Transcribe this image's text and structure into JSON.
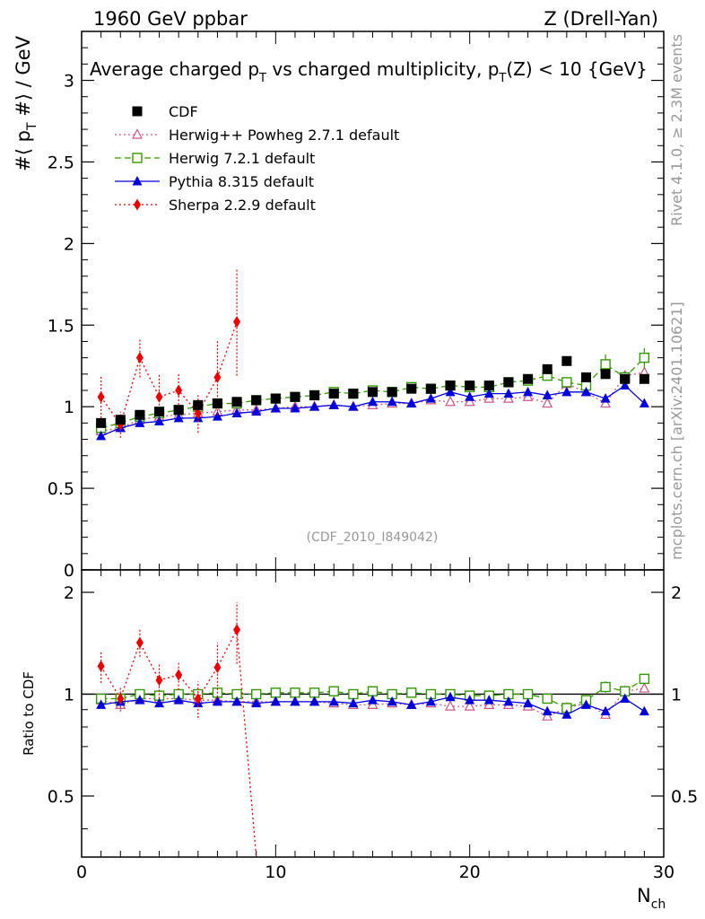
{
  "header": {
    "left_label": "1960 GeV ppbar",
    "right_label": "Z (Drell-Yan)"
  },
  "side_labels": {
    "rivet": "Rivet 4.1.0, ≥ 2.3M events",
    "mcplots": "mcplots.cern.ch [arXiv:2401.10621]"
  },
  "colors": {
    "data": "#000000",
    "herwigpp": "#cc5588",
    "herwig7": "#339900",
    "pythia": "#0000dd",
    "sherpa": "#ee0000",
    "axis": "#000000",
    "watermark": "#999999"
  },
  "chart_data": [
    {
      "type": "scatter",
      "panel": "main",
      "title_parts": {
        "t1": "Average charged p",
        "t1_sub": "T",
        "t2": " vs charged multiplicity, p",
        "t2_sub": "T",
        "t3": "(Z) < 10 {GeV}"
      },
      "ylabel_parts": {
        "a": "#⟨ p",
        "sub": "T",
        "b": " #⟩ / GeV"
      },
      "xlabel_parts": {
        "main": "N",
        "sub": "ch"
      },
      "watermark": "(CDF_2010_I849042)",
      "xlim": [
        0,
        30
      ],
      "ylim": [
        0,
        3.3
      ],
      "yticks": [
        0,
        0.5,
        1,
        1.5,
        2,
        2.5,
        3
      ],
      "ytick_labels": [
        "0",
        "0.5",
        "1",
        "1.5",
        "2",
        "2.5",
        "3"
      ],
      "x": [
        1,
        2,
        3,
        4,
        5,
        6,
        7,
        8,
        9,
        10,
        11,
        12,
        13,
        14,
        15,
        16,
        17,
        18,
        19,
        20,
        21,
        22,
        23,
        24,
        25,
        26,
        27,
        28,
        29
      ],
      "series": [
        {
          "name": "CDF",
          "style": "data",
          "values": [
            0.9,
            0.92,
            0.95,
            0.97,
            0.98,
            1.01,
            1.02,
            1.03,
            1.04,
            1.05,
            1.06,
            1.07,
            1.08,
            1.08,
            1.09,
            1.09,
            1.11,
            1.11,
            1.13,
            1.13,
            1.13,
            1.15,
            1.17,
            1.23,
            1.28,
            1.18,
            1.2,
            1.17,
            1.17
          ]
        },
        {
          "name": "Herwig++ Powheg 2.7.1 default",
          "style": "herwigpp",
          "values": [
            0.85,
            0.87,
            0.92,
            0.94,
            0.95,
            0.96,
            0.97,
            0.98,
            0.98,
            0.99,
            1.0,
            1.0,
            1.01,
            1.0,
            1.01,
            1.02,
            1.02,
            1.04,
            1.03,
            1.03,
            1.05,
            1.05,
            1.06,
            1.02,
            1.14,
            1.09,
            1.02,
            1.19,
            1.21
          ]
        },
        {
          "name": "Herwig 7.2.1 default",
          "style": "herwig7",
          "values": [
            0.87,
            0.9,
            0.94,
            0.96,
            0.98,
            1.0,
            1.02,
            1.02,
            1.04,
            1.05,
            1.06,
            1.07,
            1.09,
            1.08,
            1.1,
            1.09,
            1.12,
            1.11,
            1.13,
            1.12,
            1.12,
            1.15,
            1.16,
            1.19,
            1.15,
            1.13,
            1.26,
            1.18,
            1.3
          ],
          "err_idx": [
            26,
            28
          ],
          "err_val": [
            0.06,
            0.06
          ]
        },
        {
          "name": "Pythia 8.315 default",
          "style": "pythia",
          "values": [
            0.82,
            0.87,
            0.9,
            0.91,
            0.93,
            0.93,
            0.94,
            0.96,
            0.97,
            0.99,
            0.99,
            1.0,
            1.01,
            1.0,
            1.03,
            1.03,
            1.02,
            1.05,
            1.09,
            1.06,
            1.08,
            1.08,
            1.09,
            1.07,
            1.09,
            1.09,
            1.05,
            1.13,
            1.02
          ]
        },
        {
          "name": "Sherpa 2.2.9 default",
          "style": "sherpa",
          "x": [
            1,
            2,
            3,
            4,
            5,
            6,
            7,
            8
          ],
          "values": [
            1.06,
            0.89,
            1.3,
            1.06,
            1.1,
            0.96,
            1.18,
            1.52
          ],
          "errors": [
            0.13,
            0.08,
            0.12,
            0.14,
            0.11,
            0.12,
            0.23,
            0.33
          ]
        }
      ]
    },
    {
      "type": "line",
      "panel": "ratio",
      "ylabel": "Ratio to CDF",
      "xlim": [
        0,
        30
      ],
      "ylim": [
        0.33,
        2.33
      ],
      "xticks": [
        0,
        10,
        20,
        30
      ],
      "xtick_labels": [
        "0",
        "10",
        "20",
        "30"
      ],
      "yticks": [
        0.5,
        1,
        2
      ],
      "ytick_labels": [
        "0.5",
        "1",
        "2"
      ],
      "x": [
        1,
        2,
        3,
        4,
        5,
        6,
        7,
        8,
        9,
        10,
        11,
        12,
        13,
        14,
        15,
        16,
        17,
        18,
        19,
        20,
        21,
        22,
        23,
        24,
        25,
        26,
        27,
        28,
        29
      ],
      "series": [
        {
          "name": "Herwig++ Powheg 2.7.1 default",
          "style": "herwigpp",
          "values": [
            0.96,
            0.93,
            0.97,
            0.97,
            0.97,
            0.96,
            0.96,
            0.95,
            0.95,
            0.95,
            0.95,
            0.95,
            0.94,
            0.93,
            0.93,
            0.94,
            0.93,
            0.94,
            0.92,
            0.92,
            0.93,
            0.93,
            0.92,
            0.86,
            0.91,
            0.94,
            0.87,
            1.02,
            1.04
          ]
        },
        {
          "name": "Herwig 7.2.1 default",
          "style": "herwig7",
          "values": [
            0.97,
            0.97,
            1.0,
            0.99,
            1.0,
            1.0,
            1.01,
            1.0,
            1.0,
            1.01,
            1.01,
            1.01,
            1.02,
            1.0,
            1.02,
            1.0,
            1.01,
            1.0,
            1.0,
            0.99,
            0.99,
            1.0,
            1.0,
            0.97,
            0.91,
            0.96,
            1.05,
            1.02,
            1.11
          ],
          "err_idx": [
            26,
            28
          ],
          "err_val": [
            0.04,
            0.04
          ]
        },
        {
          "name": "Pythia 8.315 default",
          "style": "pythia",
          "values": [
            0.93,
            0.95,
            0.96,
            0.94,
            0.96,
            0.94,
            0.95,
            0.95,
            0.94,
            0.95,
            0.95,
            0.95,
            0.95,
            0.94,
            0.96,
            0.95,
            0.93,
            0.95,
            0.98,
            0.96,
            0.96,
            0.95,
            0.94,
            0.89,
            0.87,
            0.93,
            0.89,
            0.97,
            0.89
          ]
        },
        {
          "name": "Sherpa 2.2.9 default",
          "style": "sherpa",
          "x": [
            1,
            2,
            3,
            4,
            5,
            6,
            7,
            8
          ],
          "values": [
            1.21,
            0.97,
            1.42,
            1.1,
            1.14,
            0.97,
            1.2,
            1.55
          ],
          "errors": [
            0.13,
            0.08,
            0.13,
            0.13,
            0.11,
            0.12,
            0.22,
            0.32
          ],
          "tail": [
            9,
            0.33
          ]
        }
      ]
    }
  ]
}
